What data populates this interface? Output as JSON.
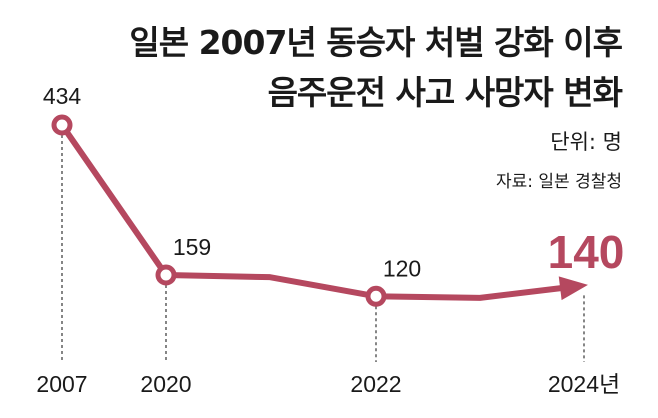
{
  "title_line1": "일본 2007년 동승자 처벌 강화 이후",
  "title_line2": "음주운전 사고 사망자 변화",
  "unit": "단위: 명",
  "source": "자료: 일본 경찰청",
  "colors": {
    "line": "#b5485f",
    "text": "#1a1a1a",
    "dash": "#444444"
  },
  "chart_data": {
    "type": "line",
    "title": "일본 2007년 동승자 처벌 강화 이후 음주운전 사고 사망자 변화",
    "x_labels": [
      "2007",
      "2020",
      "2022",
      "2024년"
    ],
    "points": [
      {
        "x": "2007",
        "y": 434,
        "label": "434",
        "marker": true
      },
      {
        "x": "2020",
        "y": 159,
        "label": "159",
        "marker": true
      },
      {
        "x": "2021",
        "y": 155,
        "label": "",
        "marker": false
      },
      {
        "x": "2022",
        "y": 120,
        "label": "120",
        "marker": true
      },
      {
        "x": "2023",
        "y": 117,
        "label": "",
        "marker": false
      },
      {
        "x": "2024",
        "y": 140,
        "label": "140",
        "marker": false,
        "highlight": true
      }
    ],
    "ylabel": "",
    "xlabel": "",
    "grid": false,
    "legend": "none"
  }
}
